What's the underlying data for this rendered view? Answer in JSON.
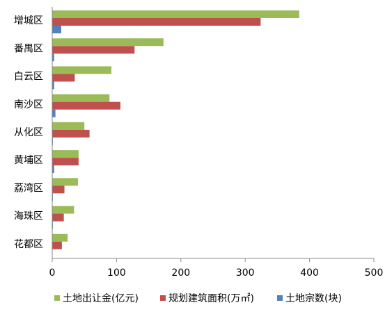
{
  "chart_data": {
    "type": "hbar",
    "categories": [
      "增城区",
      "番禺区",
      "白云区",
      "南沙区",
      "从化区",
      "黄埔区",
      "荔湾区",
      "海珠区",
      "花都区"
    ],
    "series": [
      {
        "name": "土地出让金(亿元)",
        "color": "#9bbb59",
        "values": [
          384,
          173,
          92,
          89,
          50,
          41,
          40,
          34,
          24
        ]
      },
      {
        "name": "规划建筑面积(万㎡)",
        "color": "#c0504d",
        "values": [
          324,
          128,
          35,
          106,
          58,
          41,
          19,
          18,
          15
        ]
      },
      {
        "name": "土地宗数(块)",
        "color": "#4f81bd",
        "values": [
          14,
          3,
          3,
          5,
          1,
          3,
          1,
          1,
          0
        ]
      }
    ],
    "xlim": [
      0,
      500
    ],
    "xticks": [
      0,
      100,
      200,
      300,
      400,
      500
    ],
    "legend": "bottom"
  }
}
